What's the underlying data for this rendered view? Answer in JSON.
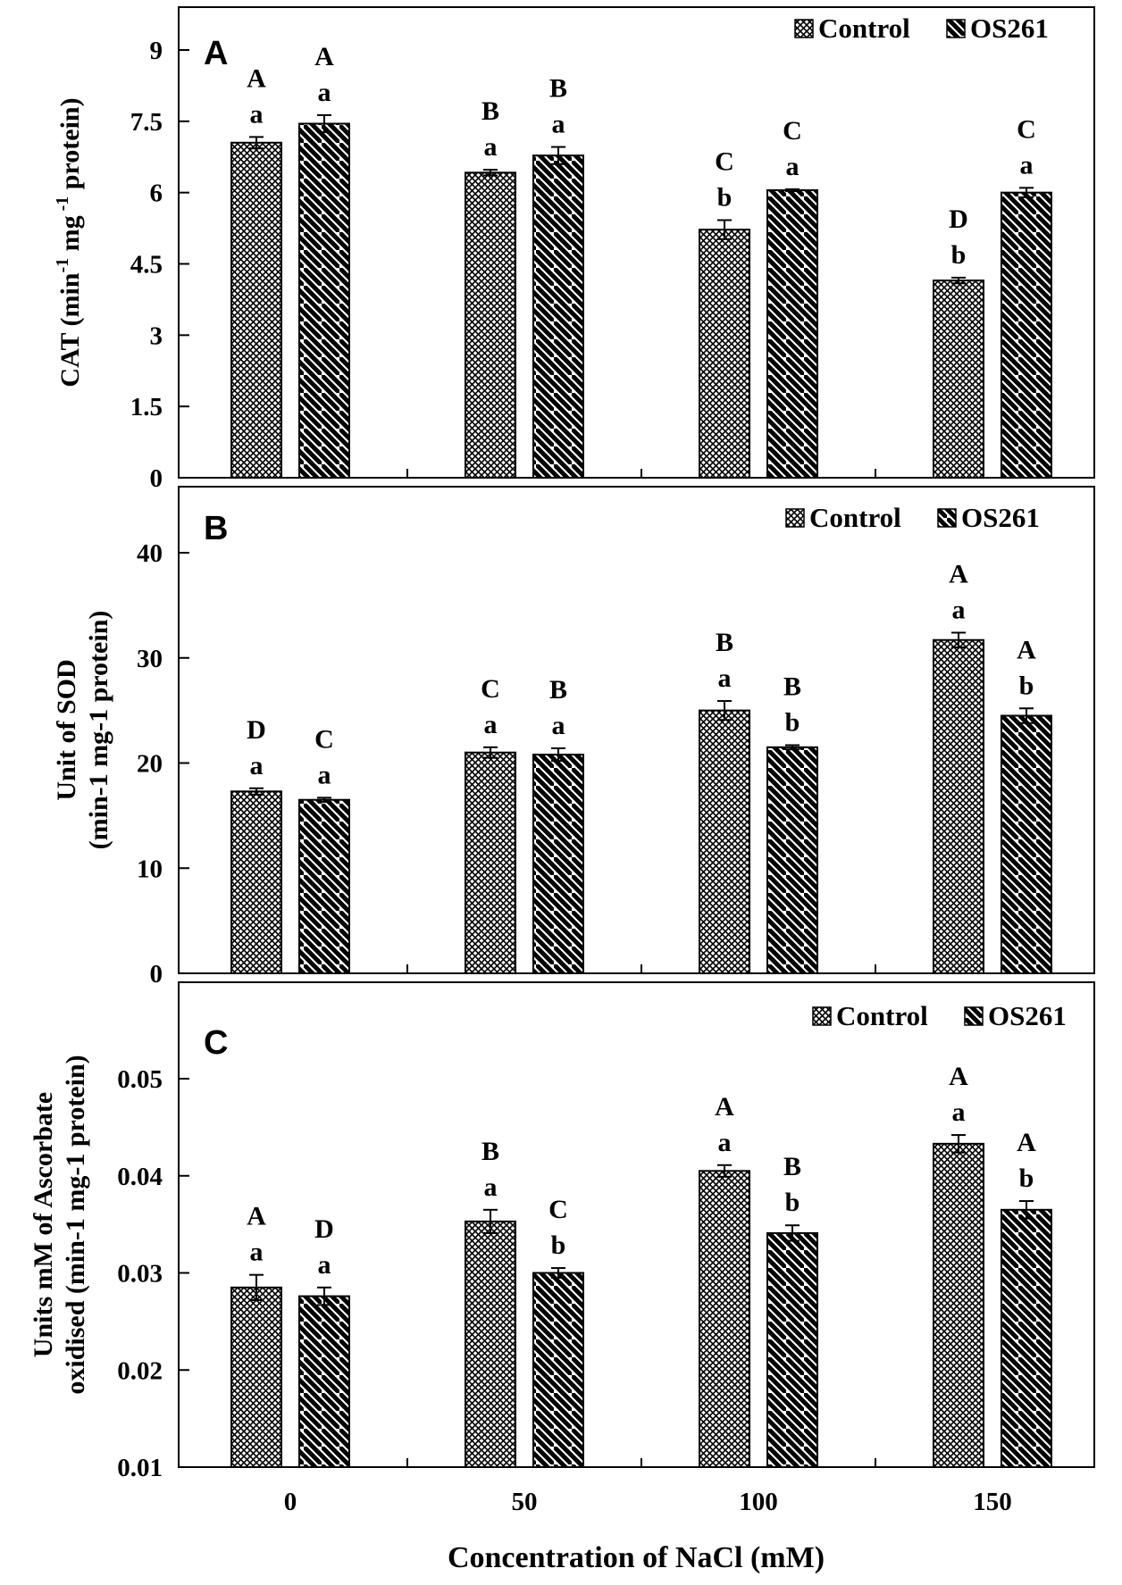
{
  "figure": {
    "x_axis_title": "Concentration  of NaCl (mM)",
    "x_categories": [
      "0",
      "50",
      "100",
      "150"
    ],
    "legend": {
      "control_label": "Control",
      "treatment_label": "OS261"
    },
    "colors": {
      "axis": "#000000",
      "bar_fill": "#ffffff",
      "pattern": "#000000"
    }
  },
  "chart_data": [
    {
      "type": "bar",
      "panel_label": "A",
      "title": "",
      "ylabel_lines": [
        "CAT (min",
        "-1",
        " mg",
        " -1",
        "protein)"
      ],
      "yticks": [
        "0",
        "1.5",
        "3",
        "4.5",
        "6",
        "7.5",
        "9"
      ],
      "ylim": [
        0,
        10
      ],
      "categories": [
        "0",
        "50",
        "100",
        "150"
      ],
      "series": [
        {
          "name": "Control",
          "values": [
            7.05,
            6.42,
            5.22,
            4.15
          ],
          "errors": [
            0.12,
            0.06,
            0.2,
            0.06
          ],
          "letters_upper": [
            "A",
            "B",
            "C",
            "D"
          ],
          "letters_lower": [
            "a",
            "a",
            "b",
            "b"
          ]
        },
        {
          "name": "OS261",
          "values": [
            7.45,
            6.78,
            6.05,
            6.0
          ],
          "errors": [
            0.18,
            0.18,
            0.02,
            0.1
          ],
          "letters_upper": [
            "A",
            "B",
            "C",
            "C"
          ],
          "letters_lower": [
            "a",
            "a",
            "a",
            "a"
          ]
        }
      ]
    },
    {
      "type": "bar",
      "panel_label": "B",
      "title": "",
      "ylabel_lines": [
        "Unit of SOD",
        "(min-1 mg-1 protein)"
      ],
      "yticks": [
        "0",
        "10",
        "20",
        "30",
        "40"
      ],
      "ylim": [
        0,
        45
      ],
      "categories": [
        "0",
        "50",
        "100",
        "150"
      ],
      "series": [
        {
          "name": "Control",
          "values": [
            17.3,
            21.0,
            25.0,
            31.7
          ],
          "errors": [
            0.3,
            0.5,
            0.9,
            0.7
          ],
          "letters_upper": [
            "D",
            "C",
            "B",
            "A"
          ],
          "letters_lower": [
            "a",
            "a",
            "a",
            "a"
          ]
        },
        {
          "name": "OS261",
          "values": [
            16.5,
            20.8,
            21.5,
            24.5
          ],
          "errors": [
            0.2,
            0.6,
            0.2,
            0.7
          ],
          "letters_upper": [
            "C",
            "B",
            "B",
            "A"
          ],
          "letters_lower": [
            "a",
            "a",
            "b",
            "b"
          ]
        }
      ]
    },
    {
      "type": "bar",
      "panel_label": "C",
      "title": "",
      "ylabel_lines": [
        "Units mM of Ascorbate",
        "oxidised (min-1 mg-1 protein)"
      ],
      "yticks": [
        "0.01",
        "0.02",
        "0.03",
        "0.04",
        "0.05"
      ],
      "ylim": [
        0.01,
        0.06
      ],
      "categories": [
        "0",
        "50",
        "100",
        "150"
      ],
      "series": [
        {
          "name": "Control",
          "values": [
            0.0285,
            0.0353,
            0.0405,
            0.0433
          ],
          "errors": [
            0.0013,
            0.0012,
            0.0006,
            0.0009
          ],
          "letters_upper": [
            "A",
            "B",
            "A",
            "A"
          ],
          "letters_lower": [
            "a",
            "a",
            "a",
            "a"
          ]
        },
        {
          "name": "OS261",
          "values": [
            0.0276,
            0.03,
            0.0341,
            0.0365
          ],
          "errors": [
            0.0009,
            0.0005,
            0.0008,
            0.0009
          ],
          "letters_upper": [
            "D",
            "C",
            "B",
            "A"
          ],
          "letters_lower": [
            "a",
            "b",
            "b",
            "b"
          ]
        }
      ]
    }
  ]
}
